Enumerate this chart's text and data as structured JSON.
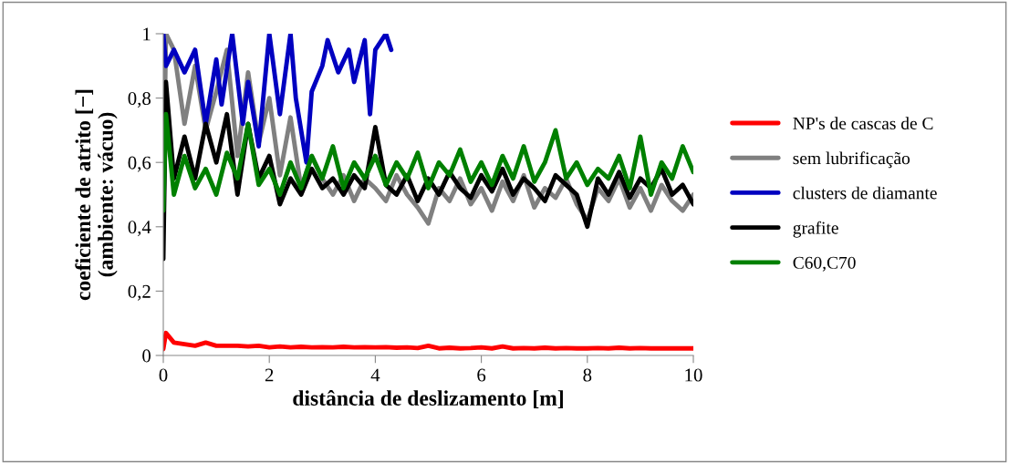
{
  "chart_data": {
    "type": "line",
    "xlabel": "distância de deslizamento [m]",
    "ylabel": "coeficiente de atrito [−]\n(ambiente: vácuo)",
    "xlim": [
      0,
      10
    ],
    "xticks": [
      0,
      2,
      4,
      6,
      8,
      10
    ],
    "ylim": [
      0,
      1
    ],
    "yticks": [
      0,
      {
        "value": 0.2,
        "label": "0,2"
      },
      {
        "value": 0.4,
        "label": "0,4"
      },
      {
        "value": 0.6,
        "label": "0,6"
      },
      {
        "value": 0.8,
        "label": "0,8"
      },
      1
    ],
    "grid": false,
    "legend": "right",
    "marker": "none",
    "line_style": "solid",
    "x": [
      0,
      0.05,
      0.2,
      0.4,
      0.6,
      0.8,
      1.0,
      1.2,
      1.4,
      1.6,
      1.8,
      2.0,
      2.2,
      2.4,
      2.6,
      2.8,
      3.0,
      3.2,
      3.4,
      3.6,
      3.8,
      4.0,
      4.2,
      4.4,
      4.6,
      4.8,
      5.0,
      5.2,
      5.4,
      5.6,
      5.8,
      6.0,
      6.2,
      6.4,
      6.6,
      6.8,
      7.0,
      7.2,
      7.4,
      7.6,
      7.8,
      8.0,
      8.2,
      8.4,
      8.6,
      8.8,
      9.0,
      9.2,
      9.4,
      9.6,
      9.8,
      10.0
    ],
    "series": [
      {
        "name": "NP's de cascas de C",
        "color": "#ff0000",
        "values": [
          0.02,
          0.07,
          0.04,
          0.035,
          0.03,
          0.04,
          0.03,
          0.03,
          0.03,
          0.028,
          0.03,
          0.025,
          0.028,
          0.025,
          0.027,
          0.025,
          0.026,
          0.025,
          0.027,
          0.025,
          0.026,
          0.025,
          0.026,
          0.024,
          0.025,
          0.023,
          0.03,
          0.022,
          0.024,
          0.022,
          0.023,
          0.025,
          0.022,
          0.028,
          0.022,
          0.023,
          0.022,
          0.024,
          0.022,
          0.023,
          0.022,
          0.022,
          0.023,
          0.022,
          0.024,
          0.022,
          0.023,
          0.022,
          0.022,
          0.022,
          0.022,
          0.022
        ]
      },
      {
        "name": "sem lubrificação",
        "color": "#808080",
        "values": [
          0.45,
          1.0,
          0.95,
          0.72,
          0.9,
          0.7,
          0.82,
          0.95,
          0.62,
          0.88,
          0.66,
          0.8,
          0.56,
          0.74,
          0.52,
          0.62,
          0.55,
          0.5,
          0.56,
          0.48,
          0.55,
          0.52,
          0.48,
          0.56,
          0.5,
          0.46,
          0.41,
          0.52,
          0.48,
          0.55,
          0.47,
          0.52,
          0.45,
          0.54,
          0.48,
          0.56,
          0.46,
          0.52,
          0.49,
          0.55,
          0.47,
          0.42,
          0.52,
          0.48,
          0.55,
          0.46,
          0.52,
          0.45,
          0.53,
          0.48,
          0.45,
          0.5
        ]
      },
      {
        "name": "clusters de diamante",
        "color": "#0000c0",
        "x": [
          0,
          0.05,
          0.2,
          0.4,
          0.6,
          0.8,
          1.0,
          1.1,
          1.3,
          1.5,
          1.6,
          1.8,
          2.0,
          2.2,
          2.4,
          2.5,
          2.7,
          2.8,
          3.0,
          3.1,
          3.3,
          3.5,
          3.6,
          3.8,
          3.9,
          4.0,
          4.2,
          4.3
        ],
        "values": [
          1.0,
          0.9,
          0.95,
          0.88,
          0.95,
          0.72,
          0.92,
          0.78,
          1.0,
          0.72,
          0.85,
          0.65,
          1.0,
          0.75,
          1.0,
          0.8,
          0.6,
          0.82,
          0.9,
          0.98,
          0.88,
          0.95,
          0.85,
          0.98,
          0.75,
          0.95,
          1.0,
          0.95
        ]
      },
      {
        "name": "grafite",
        "color": "#000000",
        "values": [
          0.3,
          0.85,
          0.55,
          0.68,
          0.55,
          0.72,
          0.6,
          0.75,
          0.5,
          0.72,
          0.55,
          0.62,
          0.47,
          0.55,
          0.5,
          0.58,
          0.52,
          0.55,
          0.5,
          0.56,
          0.52,
          0.71,
          0.53,
          0.5,
          0.56,
          0.48,
          0.55,
          0.5,
          0.57,
          0.52,
          0.49,
          0.56,
          0.51,
          0.58,
          0.5,
          0.55,
          0.52,
          0.48,
          0.56,
          0.53,
          0.5,
          0.4,
          0.55,
          0.5,
          0.57,
          0.49,
          0.55,
          0.52,
          0.58,
          0.5,
          0.53,
          0.47
        ]
      },
      {
        "name": "C60,C70",
        "color": "#008000",
        "values": [
          0.45,
          0.75,
          0.5,
          0.62,
          0.52,
          0.58,
          0.5,
          0.63,
          0.55,
          0.72,
          0.53,
          0.58,
          0.5,
          0.6,
          0.52,
          0.62,
          0.55,
          0.65,
          0.52,
          0.6,
          0.55,
          0.62,
          0.53,
          0.6,
          0.55,
          0.63,
          0.52,
          0.6,
          0.56,
          0.64,
          0.54,
          0.6,
          0.53,
          0.62,
          0.55,
          0.65,
          0.54,
          0.6,
          0.7,
          0.55,
          0.6,
          0.53,
          0.58,
          0.55,
          0.62,
          0.52,
          0.68,
          0.5,
          0.6,
          0.55,
          0.65,
          0.57
        ]
      }
    ]
  }
}
